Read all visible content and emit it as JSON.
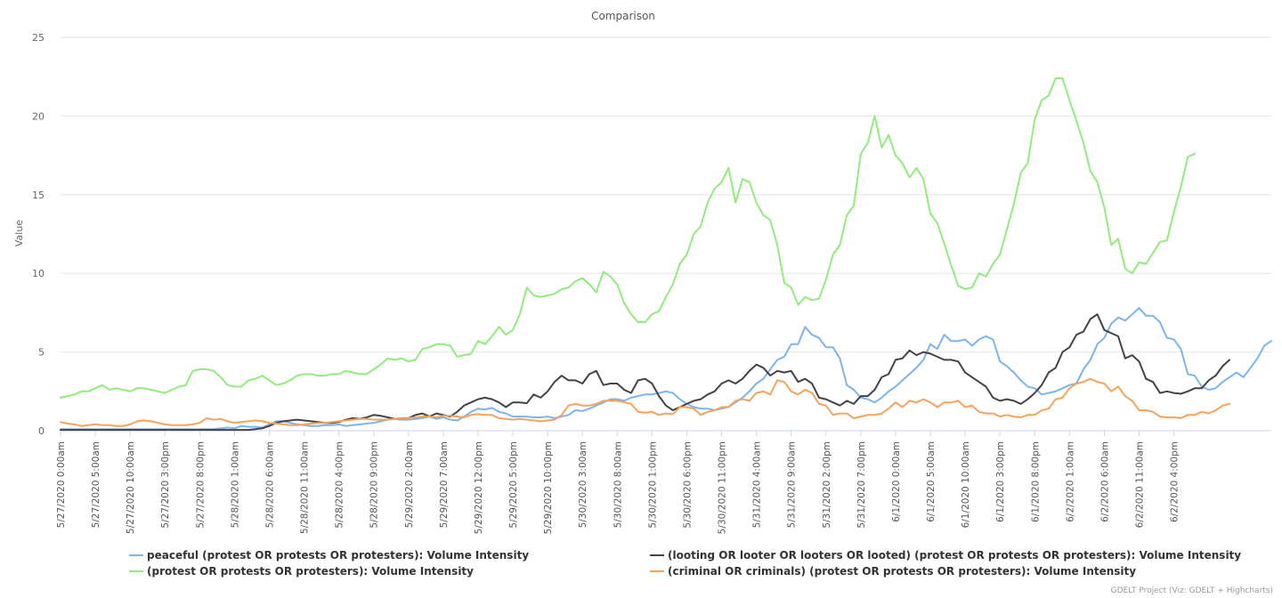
{
  "chart_data": {
    "type": "line",
    "title": "Comparison",
    "ylabel": "Value",
    "ylim": [
      0,
      25
    ],
    "yticks": [
      0,
      5,
      10,
      15,
      20,
      25
    ],
    "x_start": "5/27/2020 0:00am",
    "x_step_hours": 1,
    "x_tick_every": 5,
    "x_tick_labels": [
      "5/27/2020 0:00am",
      "5/27/2020 5:00am",
      "5/27/2020 10:00am",
      "5/27/2020 3:00pm",
      "5/27/2020 8:00pm",
      "5/28/2020 1:00am",
      "5/28/2020 6:00am",
      "5/28/2020 11:00am",
      "5/28/2020 4:00pm",
      "5/28/2020 9:00pm",
      "5/29/2020 2:00am",
      "5/29/2020 7:00am",
      "5/29/2020 12:00pm",
      "5/29/2020 5:00pm",
      "5/29/2020 10:00pm",
      "5/30/2020 3:00am",
      "5/30/2020 8:00am",
      "5/30/2020 1:00pm",
      "5/30/2020 6:00pm",
      "5/30/2020 11:00pm",
      "5/31/2020 4:00am",
      "5/31/2020 9:00am",
      "5/31/2020 2:00pm",
      "5/31/2020 7:00pm",
      "6/1/2020 0:00am",
      "6/1/2020 5:00am",
      "6/1/2020 10:00am",
      "6/1/2020 3:00pm",
      "6/1/2020 8:00pm",
      "6/2/2020 1:00am",
      "6/2/2020 6:00am",
      "6/2/2020 11:00am",
      "6/2/2020 4:00pm"
    ],
    "grid": true,
    "legend": "bottom",
    "series": [
      {
        "name": "peaceful (protest OR protests OR protesters): Volume Intensity",
        "color": "#7cb5ec",
        "values": [
          0.1,
          0.1,
          0.1,
          0.1,
          0.1,
          0.1,
          0.1,
          0.1,
          0.1,
          0.1,
          0.1,
          0.1,
          0.1,
          0.1,
          0.1,
          0.1,
          0.1,
          0.1,
          0.1,
          0.1,
          0.1,
          0.1,
          0.1,
          0.15,
          0.2,
          0.15,
          0.3,
          0.25,
          0.25,
          0.2,
          0.4,
          0.6,
          0.6,
          0.5,
          0.4,
          0.35,
          0.3,
          0.3,
          0.35,
          0.35,
          0.4,
          0.3,
          0.35,
          0.4,
          0.45,
          0.5,
          0.6,
          0.7,
          0.75,
          0.7,
          0.7,
          0.75,
          0.8,
          0.9,
          0.75,
          0.85,
          0.7,
          0.65,
          0.9,
          1.2,
          1.4,
          1.35,
          1.45,
          1.2,
          1.1,
          0.9,
          0.9,
          0.9,
          0.85,
          0.85,
          0.9,
          0.8,
          0.9,
          1.0,
          1.3,
          1.25,
          1.4,
          1.6,
          1.8,
          2.0,
          2.0,
          1.9,
          2.1,
          2.2,
          2.3,
          2.3,
          2.4,
          2.5,
          2.4,
          2.0,
          1.7,
          1.5,
          1.4,
          1.4,
          1.3,
          1.4,
          1.5,
          1.8,
          2.1,
          2.5,
          3.0,
          3.3,
          3.9,
          4.5,
          4.7,
          5.5,
          5.5,
          6.6,
          6.1,
          5.9,
          5.3,
          5.3,
          4.6,
          2.9,
          2.6,
          2.1,
          2.0,
          1.8,
          2.1,
          2.5,
          2.8,
          3.2,
          3.6,
          4.0,
          4.5,
          5.5,
          5.2,
          6.1,
          5.7,
          5.7,
          5.8,
          5.4,
          5.8,
          6.0,
          5.8,
          4.4,
          4.1,
          3.7,
          3.2,
          2.8,
          2.7,
          2.3,
          2.4,
          2.5,
          2.7,
          2.9,
          3.0,
          3.9,
          4.5,
          5.5,
          5.9,
          6.8,
          7.2,
          7.0,
          7.4,
          7.8,
          7.3,
          7.3,
          6.9,
          5.9,
          5.8,
          5.2,
          3.6,
          3.5,
          2.8,
          2.6,
          2.7,
          3.1,
          3.4,
          3.7,
          3.4,
          4.0,
          4.6,
          5.4,
          5.7
        ]
      },
      {
        "name": "(looting OR looter OR looters OR looted) (protest OR protests OR protesters): Volume Intensity",
        "color": "#434348",
        "values": [
          0.05,
          0.05,
          0.05,
          0.05,
          0.05,
          0.05,
          0.05,
          0.05,
          0.05,
          0.05,
          0.05,
          0.05,
          0.05,
          0.05,
          0.05,
          0.05,
          0.05,
          0.05,
          0.05,
          0.05,
          0.05,
          0.05,
          0.05,
          0.05,
          0.05,
          0.05,
          0.05,
          0.05,
          0.1,
          0.15,
          0.3,
          0.5,
          0.6,
          0.65,
          0.7,
          0.65,
          0.6,
          0.55,
          0.5,
          0.5,
          0.55,
          0.7,
          0.8,
          0.75,
          0.85,
          1.0,
          0.95,
          0.85,
          0.75,
          0.8,
          0.8,
          1.0,
          1.1,
          0.9,
          1.1,
          1.0,
          0.9,
          1.2,
          1.6,
          1.8,
          2.0,
          2.1,
          2.0,
          1.8,
          1.5,
          1.8,
          1.8,
          1.75,
          2.3,
          2.1,
          2.5,
          3.1,
          3.5,
          3.2,
          3.2,
          3.0,
          3.6,
          3.8,
          2.9,
          3.0,
          3.0,
          2.6,
          2.4,
          3.2,
          3.3,
          3.0,
          2.2,
          1.6,
          1.3,
          1.5,
          1.7,
          1.9,
          2.0,
          2.3,
          2.5,
          3.0,
          3.2,
          3.0,
          3.3,
          3.8,
          4.2,
          4.0,
          3.5,
          3.8,
          3.7,
          3.8,
          3.1,
          3.3,
          3.0,
          2.1,
          2.0,
          1.8,
          1.6,
          1.9,
          1.7,
          2.2,
          2.2,
          2.6,
          3.4,
          3.6,
          4.5,
          4.6,
          5.1,
          4.8,
          5.0,
          4.9,
          4.7,
          4.5,
          4.5,
          4.4,
          3.7,
          3.4,
          3.1,
          2.8,
          2.1,
          1.9,
          2.0,
          1.9,
          1.7,
          2.0,
          2.4,
          2.9,
          3.7,
          4.0,
          5.0,
          5.3,
          6.1,
          6.3,
          7.1,
          7.4,
          6.4,
          6.2,
          6.0,
          4.6,
          4.8,
          4.4,
          3.3,
          3.1,
          2.4,
          2.5,
          2.4,
          2.35,
          2.5,
          2.7,
          2.7,
          3.2,
          3.5,
          4.1,
          4.5
        ]
      },
      {
        "name": "(protest OR protests OR protesters): Volume Intensity",
        "color": "#90ed7d",
        "values": [
          2.1,
          2.2,
          2.3,
          2.5,
          2.5,
          2.7,
          2.9,
          2.6,
          2.7,
          2.6,
          2.5,
          2.7,
          2.7,
          2.6,
          2.5,
          2.4,
          2.6,
          2.8,
          2.9,
          3.8,
          3.9,
          3.9,
          3.8,
          3.4,
          2.9,
          2.8,
          2.8,
          3.2,
          3.3,
          3.5,
          3.2,
          2.9,
          3.0,
          3.2,
          3.5,
          3.6,
          3.6,
          3.5,
          3.5,
          3.6,
          3.6,
          3.8,
          3.7,
          3.6,
          3.6,
          3.9,
          4.2,
          4.6,
          4.5,
          4.6,
          4.4,
          4.5,
          5.2,
          5.3,
          5.5,
          5.5,
          5.4,
          4.7,
          4.8,
          4.9,
          5.7,
          5.5,
          6.0,
          6.6,
          6.1,
          6.4,
          7.4,
          9.1,
          8.6,
          8.5,
          8.6,
          8.7,
          9.0,
          9.1,
          9.5,
          9.7,
          9.3,
          8.8,
          10.1,
          9.8,
          9.3,
          8.1,
          7.4,
          6.9,
          6.9,
          7.4,
          7.6,
          8.5,
          9.3,
          10.6,
          11.2,
          12.5,
          13.0,
          14.5,
          15.4,
          15.8,
          16.7,
          14.5,
          16.0,
          15.8,
          14.5,
          13.7,
          13.4,
          11.8,
          9.4,
          9.1,
          8.0,
          8.5,
          8.3,
          8.4,
          9.6,
          11.2,
          11.8,
          13.7,
          14.3,
          17.6,
          18.3,
          20.0,
          18.0,
          18.8,
          17.5,
          17.0,
          16.1,
          16.7,
          16.0,
          13.8,
          13.2,
          11.9,
          10.5,
          9.2,
          9.0,
          9.1,
          10.0,
          9.8,
          10.6,
          11.2,
          12.8,
          14.4,
          16.4,
          17.0,
          19.8,
          21.0,
          21.3,
          22.4,
          22.4,
          21.0,
          19.7,
          18.3,
          16.5,
          15.8,
          14.2,
          11.8,
          12.2,
          10.3,
          10.0,
          10.7,
          10.6,
          11.3,
          12.0,
          12.1,
          13.9,
          15.5,
          17.4,
          17.6
        ]
      },
      {
        "name": "(criminal OR criminals) (protest OR protests OR protesters): Volume Intensity",
        "color": "#f7a35c",
        "values": [
          0.55,
          0.45,
          0.4,
          0.3,
          0.35,
          0.4,
          0.35,
          0.35,
          0.3,
          0.3,
          0.4,
          0.6,
          0.65,
          0.6,
          0.5,
          0.4,
          0.35,
          0.35,
          0.35,
          0.4,
          0.5,
          0.8,
          0.7,
          0.75,
          0.6,
          0.5,
          0.55,
          0.6,
          0.65,
          0.6,
          0.5,
          0.45,
          0.4,
          0.35,
          0.35,
          0.4,
          0.45,
          0.5,
          0.5,
          0.55,
          0.6,
          0.65,
          0.7,
          0.75,
          0.75,
          0.7,
          0.7,
          0.7,
          0.75,
          0.8,
          0.8,
          0.85,
          0.9,
          0.9,
          0.85,
          0.95,
          0.95,
          0.9,
          0.85,
          1.0,
          1.05,
          1.0,
          1.0,
          0.8,
          0.75,
          0.7,
          0.75,
          0.7,
          0.65,
          0.6,
          0.65,
          0.7,
          1.0,
          1.6,
          1.7,
          1.6,
          1.6,
          1.7,
          1.9,
          1.9,
          1.9,
          1.8,
          1.7,
          1.2,
          1.15,
          1.2,
          1.0,
          1.1,
          1.05,
          1.5,
          1.5,
          1.4,
          1.0,
          1.2,
          1.3,
          1.5,
          1.5,
          1.9,
          2.0,
          1.9,
          2.4,
          2.5,
          2.3,
          3.2,
          3.1,
          2.5,
          2.3,
          2.6,
          2.4,
          1.7,
          1.6,
          1.0,
          1.1,
          1.1,
          0.8,
          0.9,
          1.0,
          1.0,
          1.1,
          1.4,
          1.8,
          1.5,
          1.9,
          1.8,
          2.0,
          1.8,
          1.5,
          1.8,
          1.8,
          1.9,
          1.5,
          1.6,
          1.2,
          1.1,
          1.1,
          0.9,
          1.0,
          0.9,
          0.85,
          1.0,
          1.0,
          1.3,
          1.4,
          2.0,
          2.1,
          2.7,
          3.0,
          3.1,
          3.3,
          3.1,
          3.0,
          2.5,
          2.8,
          2.2,
          1.9,
          1.3,
          1.3,
          1.2,
          0.9,
          0.85,
          0.85,
          0.8,
          1.0,
          1.0,
          1.2,
          1.1,
          1.3,
          1.6,
          1.7
        ]
      }
    ]
  },
  "credits": "GDELT Project (Viz: GDELT + Highcharts)"
}
